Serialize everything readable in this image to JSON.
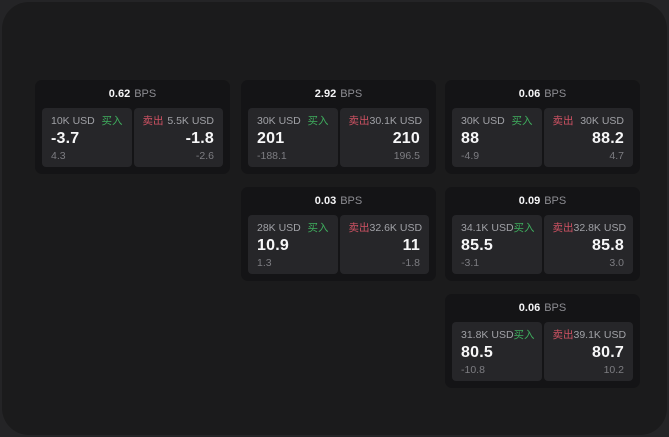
{
  "labels": {
    "bps_unit": "BPS",
    "buy": "买入",
    "sell": "卖出"
  },
  "colors": {
    "buy_green": "#3fae5e",
    "sell_red": "#cf5263",
    "window_bg": "#1b1b1c",
    "card_bg": "#141416",
    "panel_bg": "#262629"
  },
  "cards": [
    {
      "bps": "0.62",
      "buy": {
        "amount": "10K USD",
        "value": "-3.7",
        "sub": "4.3"
      },
      "sell": {
        "amount": "5.5K USD",
        "value": "-1.8",
        "sub": "-2.6"
      }
    },
    {
      "bps": "2.92",
      "buy": {
        "amount": "30K USD",
        "value": "201",
        "sub": "-188.1"
      },
      "sell": {
        "amount": "30.1K USD",
        "value": "210",
        "sub": "196.5"
      }
    },
    {
      "bps": "0.06",
      "buy": {
        "amount": "30K USD",
        "value": "88",
        "sub": "-4.9"
      },
      "sell": {
        "amount": "30K USD",
        "value": "88.2",
        "sub": "4.7"
      }
    },
    {
      "bps": "0.03",
      "buy": {
        "amount": "28K USD",
        "value": "10.9",
        "sub": "1.3"
      },
      "sell": {
        "amount": "32.6K USD",
        "value": "11",
        "sub": "-1.8"
      }
    },
    {
      "bps": "0.09",
      "buy": {
        "amount": "34.1K USD",
        "value": "85.5",
        "sub": "-3.1"
      },
      "sell": {
        "amount": "32.8K USD",
        "value": "85.8",
        "sub": "3.0"
      }
    },
    {
      "bps": "0.06",
      "buy": {
        "amount": "31.8K USD",
        "value": "80.5",
        "sub": "-10.8"
      },
      "sell": {
        "amount": "39.1K USD",
        "value": "80.7",
        "sub": "10.2"
      }
    }
  ]
}
